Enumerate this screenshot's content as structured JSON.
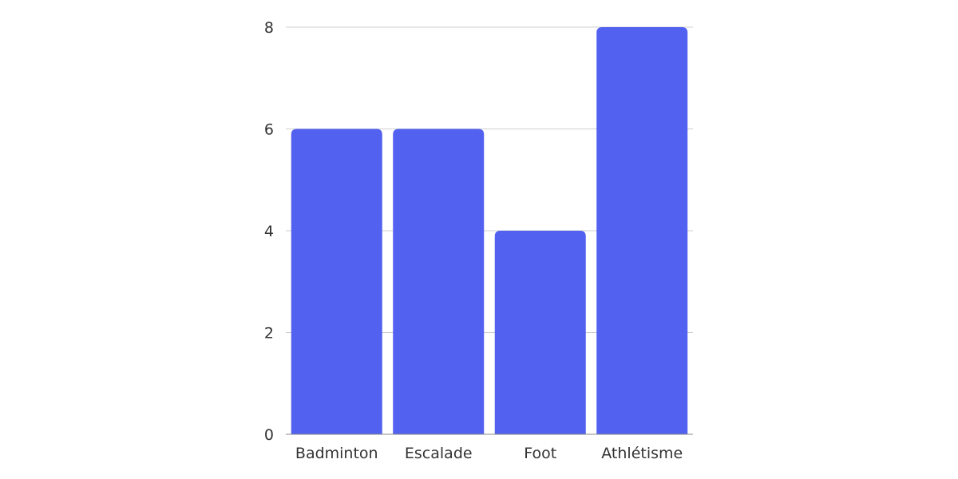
{
  "chart_data": {
    "type": "bar",
    "categories": [
      "Badminton",
      "Escalade",
      "Foot",
      "Athlétisme"
    ],
    "values": [
      6,
      6,
      4,
      8
    ],
    "title": "",
    "xlabel": "",
    "ylabel": "",
    "ylim": [
      0,
      8
    ],
    "yticks": [
      0,
      2,
      4,
      6,
      8
    ],
    "grid": true,
    "legend": "none",
    "colors": {
      "bar": "#5261ef",
      "grid": "#cfcfcf",
      "text": "#333333"
    }
  }
}
